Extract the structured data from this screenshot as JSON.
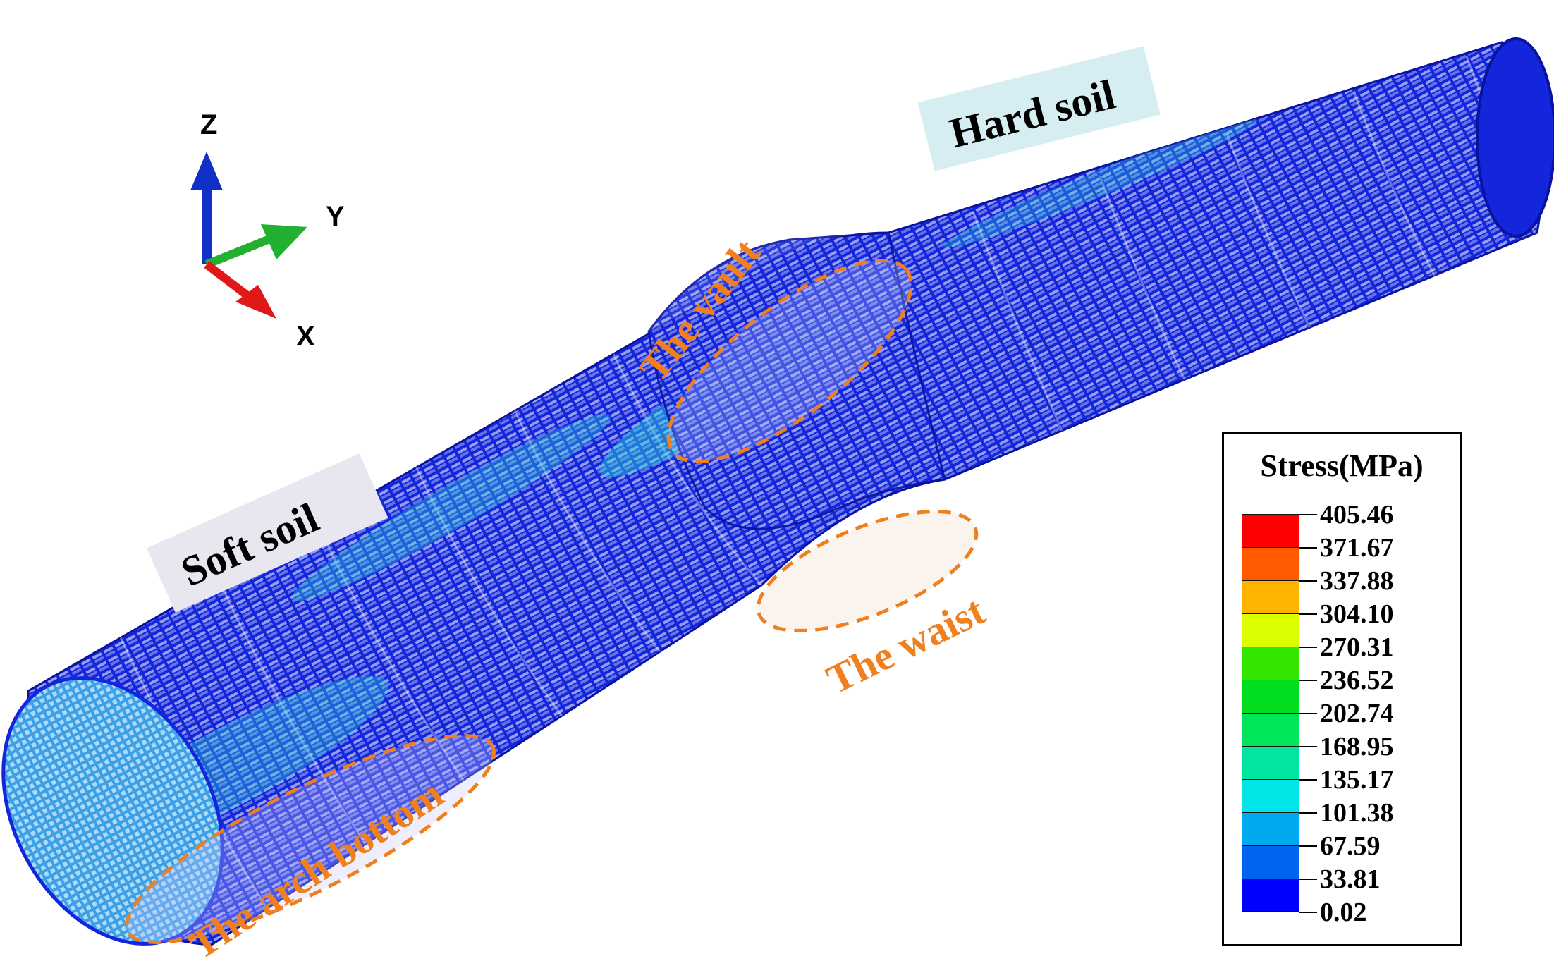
{
  "axes": {
    "z_label": "Z",
    "y_label": "Y",
    "x_label": "X"
  },
  "soil_labels": {
    "hard": "Hard soil",
    "soft": "Soft soil"
  },
  "regions": {
    "vault": "The vault",
    "waist": "The waist",
    "arch_bottom": "The arch bottom"
  },
  "legend": {
    "title": "Stress(MPa)",
    "ticks": [
      "405.46",
      "371.67",
      "337.88",
      "304.10",
      "270.31",
      "236.52",
      "202.74",
      "168.95",
      "135.17",
      "101.38",
      "67.59",
      "33.81",
      "0.02"
    ],
    "colors": [
      "#ff0000",
      "#ff5a00",
      "#ffb400",
      "#dcff00",
      "#32e600",
      "#00dc1e",
      "#00e65a",
      "#00e6a0",
      "#00e6e6",
      "#00aaf0",
      "#0064f0",
      "#0000ff"
    ]
  },
  "colors": {
    "mesh_base": "#1426dc",
    "mesh_light": "#2f6bf0",
    "highlight_cyan": "#2ad6d6",
    "highlight_green": "#30e060",
    "annotation_orange": "#f07f1e",
    "hard_soil_bg": "#d6eef2",
    "soft_soil_bg": "#e8e6ee",
    "axis_z": "#1030c8",
    "axis_y": "#22b030",
    "axis_x": "#e01818"
  }
}
